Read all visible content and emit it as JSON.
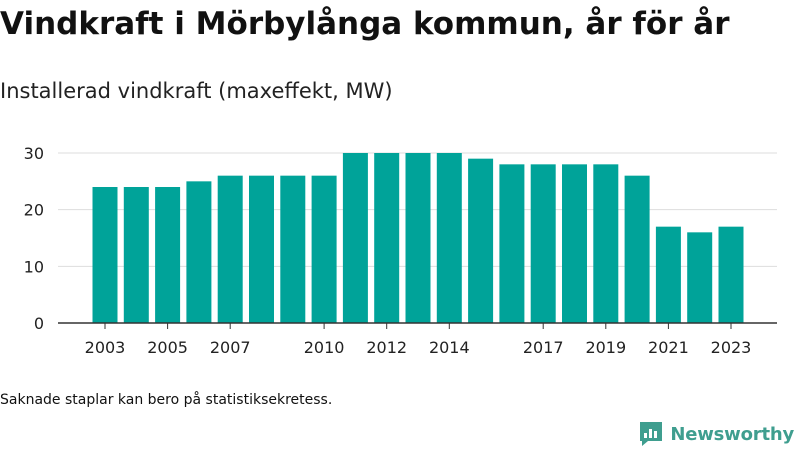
{
  "title": "Vindkraft i Mörbylånga kommun, år för år",
  "subtitle": "Installerad vindkraft (maxeffekt, MW)",
  "note": "Saknade staplar kan bero på statistiksekretess.",
  "brand": {
    "name": "Newsworthy",
    "icon": "newsworthy-logo-icon",
    "color": "#3f9e8f"
  },
  "colors": {
    "bar": "#00a399",
    "grid": "#dddddd",
    "axis": "#333333",
    "text": "#222222"
  },
  "chart_data": {
    "type": "bar",
    "categories": [
      "2003",
      "2004",
      "2005",
      "2006",
      "2007",
      "2008",
      "2009",
      "2010",
      "2011",
      "2012",
      "2013",
      "2014",
      "2015",
      "2016",
      "2017",
      "2018",
      "2019",
      "2020",
      "2021",
      "2022",
      "2023"
    ],
    "values": [
      24,
      24,
      24,
      25,
      26,
      26,
      26,
      26,
      30,
      30,
      30,
      30,
      29,
      28,
      28,
      28,
      28,
      26,
      17,
      16,
      17
    ],
    "x_tick_labels": [
      "2003",
      "2005",
      "2007",
      "2010",
      "2012",
      "2014",
      "2017",
      "2019",
      "2021",
      "2023"
    ],
    "y_ticks": [
      0,
      10,
      20,
      30
    ],
    "ylim": [
      0,
      30
    ],
    "xlabel": "",
    "ylabel": "",
    "grid": true,
    "legend": "none"
  }
}
